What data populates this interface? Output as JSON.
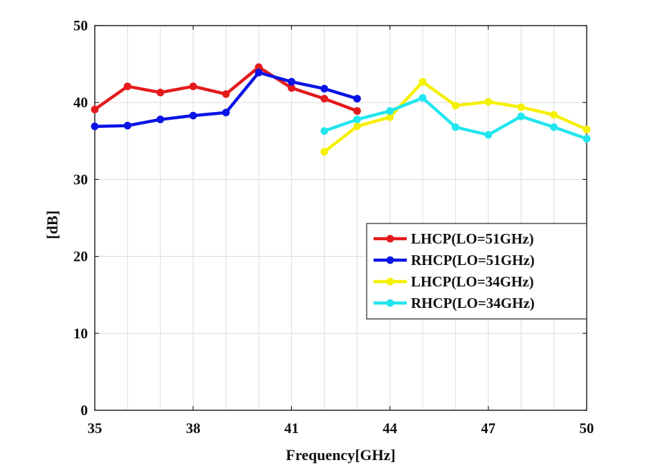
{
  "chart_data": {
    "type": "line",
    "xlabel": "Frequency[GHz]",
    "ylabel": "[dB]",
    "xlim": [
      35,
      50
    ],
    "ylim": [
      0,
      50
    ],
    "xticks": [
      35,
      38,
      41,
      44,
      47,
      50
    ],
    "yticks": [
      0,
      10,
      20,
      30,
      40,
      50
    ],
    "grid": true,
    "legend_position": "right",
    "series": [
      {
        "name": "LHCP(LO=51GHz)",
        "color": "#e31a1c",
        "x": [
          35,
          36,
          37,
          38,
          39,
          40,
          41,
          42,
          43
        ],
        "y": [
          39.1,
          42.1,
          41.3,
          42.1,
          41.1,
          44.6,
          41.9,
          40.5,
          38.9
        ]
      },
      {
        "name": "RHCP(LO=51GHz)",
        "color": "#0a14e6",
        "x": [
          35,
          36,
          37,
          38,
          39,
          40,
          41,
          42,
          43
        ],
        "y": [
          36.9,
          37.0,
          37.8,
          38.3,
          38.7,
          43.9,
          42.7,
          41.8,
          40.5
        ]
      },
      {
        "name": "LHCP(LO=34GHz)",
        "color": "#f5f000",
        "x": [
          42,
          43,
          44,
          45,
          46,
          47,
          48,
          49,
          50
        ],
        "y": [
          33.6,
          36.9,
          38.1,
          42.7,
          39.6,
          40.1,
          39.4,
          38.4,
          36.5
        ]
      },
      {
        "name": "RHCP(LO=34GHz)",
        "color": "#22e6ee",
        "x": [
          42,
          43,
          44,
          45,
          46,
          47,
          48,
          49,
          50
        ],
        "y": [
          36.3,
          37.8,
          38.9,
          40.6,
          36.8,
          35.8,
          38.2,
          36.8,
          35.3
        ]
      }
    ]
  }
}
